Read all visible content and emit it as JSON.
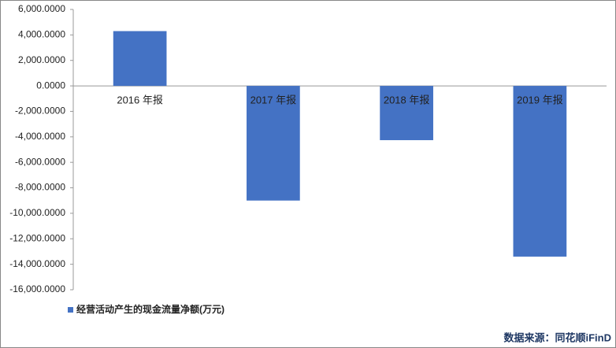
{
  "chart_data": {
    "type": "bar",
    "categories": [
      "2016 年报",
      "2017 年报",
      "2018 年报",
      "2019 年报"
    ],
    "series": [
      {
        "name": "经营活动产生的现金流量净额(万元)",
        "color": "#4472c4",
        "values": [
          4300,
          -9000,
          -4260,
          -13400
        ]
      }
    ],
    "ylim": [
      -16000,
      6000
    ],
    "yticks": [
      {
        "value": 6000,
        "label": "6,000.0000"
      },
      {
        "value": 4000,
        "label": "4,000.0000"
      },
      {
        "value": 2000,
        "label": "2,000.0000"
      },
      {
        "value": 0,
        "label": "0.0000"
      },
      {
        "value": -2000,
        "label": "-2,000.0000"
      },
      {
        "value": -4000,
        "label": "-4,000.0000"
      },
      {
        "value": -6000,
        "label": "-6,000.0000"
      },
      {
        "value": -8000,
        "label": "-8,000.0000"
      },
      {
        "value": -10000,
        "label": "-10,000.0000"
      },
      {
        "value": -12000,
        "label": "-12,000.0000"
      },
      {
        "value": -14000,
        "label": "-14,000.0000"
      },
      {
        "value": -16000,
        "label": "-16,000.0000"
      }
    ],
    "source": "数据来源：同花顺iFinD"
  }
}
